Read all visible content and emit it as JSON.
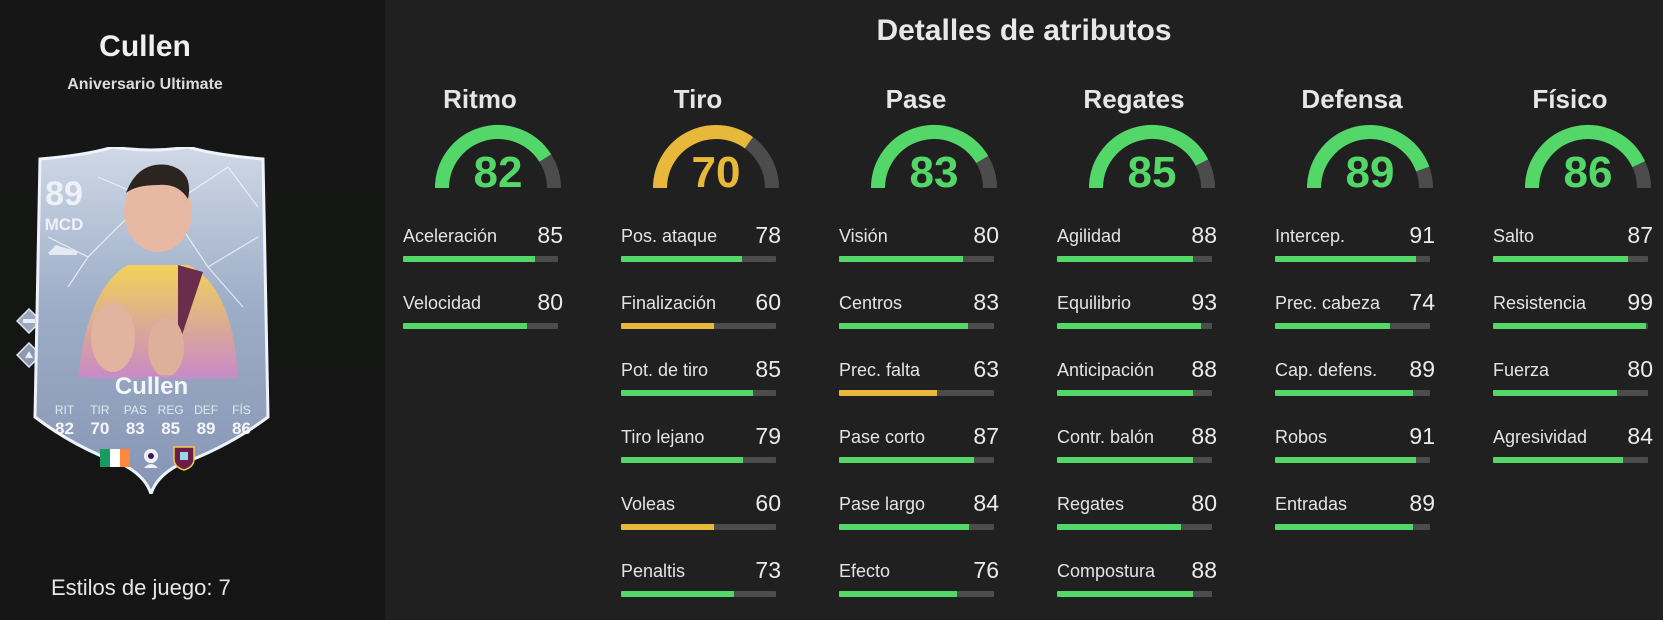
{
  "player": {
    "name": "Cullen",
    "card_type": "Aniversario Ultimate",
    "playstyles_label": "Estilos de juego: 7"
  },
  "card": {
    "rating": "89",
    "position": "MCD",
    "name": "Cullen",
    "stat_labels": [
      "RIT",
      "TIR",
      "PAS",
      "REG",
      "DEF",
      "FÍS"
    ],
    "stat_values": [
      "82",
      "70",
      "83",
      "85",
      "89",
      "86"
    ]
  },
  "section_title": "Detalles de atributos",
  "colors": {
    "green": "#53d769",
    "yellow": "#e8b83a",
    "track": "#4b4c4b",
    "background": "#1f201f"
  },
  "categories": [
    {
      "name": "Ritmo",
      "value": 82,
      "stats": [
        {
          "name": "Aceleración",
          "value": 85
        },
        {
          "name": "Velocidad",
          "value": 80
        }
      ]
    },
    {
      "name": "Tiro",
      "value": 70,
      "stats": [
        {
          "name": "Pos. ataque",
          "value": 78
        },
        {
          "name": "Finalización",
          "value": 60
        },
        {
          "name": "Pot. de tiro",
          "value": 85
        },
        {
          "name": "Tiro lejano",
          "value": 79
        },
        {
          "name": "Voleas",
          "value": 60
        },
        {
          "name": "Penaltis",
          "value": 73
        }
      ]
    },
    {
      "name": "Pase",
      "value": 83,
      "stats": [
        {
          "name": "Visión",
          "value": 80
        },
        {
          "name": "Centros",
          "value": 83
        },
        {
          "name": "Prec. falta",
          "value": 63
        },
        {
          "name": "Pase corto",
          "value": 87
        },
        {
          "name": "Pase largo",
          "value": 84
        },
        {
          "name": "Efecto",
          "value": 76
        }
      ]
    },
    {
      "name": "Regates",
      "value": 85,
      "stats": [
        {
          "name": "Agilidad",
          "value": 88
        },
        {
          "name": "Equilibrio",
          "value": 93
        },
        {
          "name": "Anticipación",
          "value": 88
        },
        {
          "name": "Contr. balón",
          "value": 88
        },
        {
          "name": "Regates",
          "value": 80
        },
        {
          "name": "Compostura",
          "value": 88
        }
      ]
    },
    {
      "name": "Defensa",
      "value": 89,
      "stats": [
        {
          "name": "Intercep.",
          "value": 91
        },
        {
          "name": "Prec. cabeza",
          "value": 74
        },
        {
          "name": "Cap. defens.",
          "value": 89
        },
        {
          "name": "Robos",
          "value": 91
        },
        {
          "name": "Entradas",
          "value": 89
        }
      ]
    },
    {
      "name": "Físico",
      "value": 86,
      "stats": [
        {
          "name": "Salto",
          "value": 87
        },
        {
          "name": "Resistencia",
          "value": 99
        },
        {
          "name": "Fuerza",
          "value": 80
        },
        {
          "name": "Agresividad",
          "value": 84
        }
      ]
    }
  ]
}
